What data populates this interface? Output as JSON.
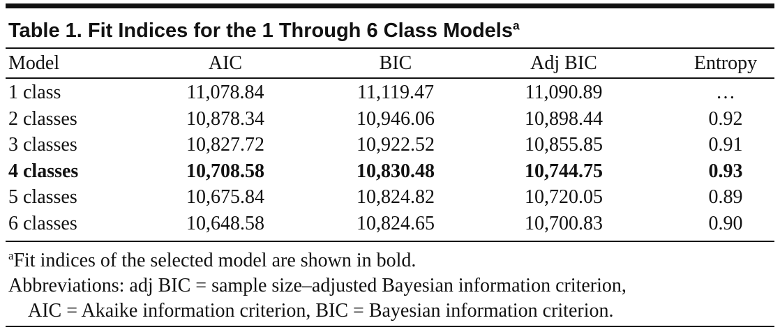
{
  "table": {
    "title": "Table 1. Fit Indices for the 1 Through 6 Class Models",
    "title_note_mark": "a",
    "columns": [
      "Model",
      "AIC",
      "BIC",
      "Adj BIC",
      "Entropy"
    ],
    "rows": [
      {
        "cells": [
          "1 class",
          "11,078.84",
          "11,119.47",
          "11,090.89",
          "…"
        ]
      },
      {
        "cells": [
          "2 classes",
          "10,878.34",
          "10,946.06",
          "10,898.44",
          "0.92"
        ]
      },
      {
        "cells": [
          "3 classes",
          "10,827.72",
          "10,922.52",
          "10,855.85",
          "0.91"
        ]
      },
      {
        "cells": [
          "4 classes",
          "10,708.58",
          "10,830.48",
          "10,744.75",
          "0.93"
        ],
        "bold": true
      },
      {
        "cells": [
          "5 classes",
          "10,675.84",
          "10,824.82",
          "10,720.05",
          "0.89"
        ]
      },
      {
        "cells": [
          "6 classes",
          "10,648.58",
          "10,824.65",
          "10,700.83",
          "0.90"
        ]
      }
    ],
    "footnote": {
      "mark": "a",
      "text": "Fit indices of the selected model are shown in bold."
    },
    "abbreviations": [
      "Abbreviations: adj BIC = sample size–adjusted Bayesian information criterion,",
      "AIC = Akaike information criterion, BIC = Bayesian information criterion."
    ]
  }
}
